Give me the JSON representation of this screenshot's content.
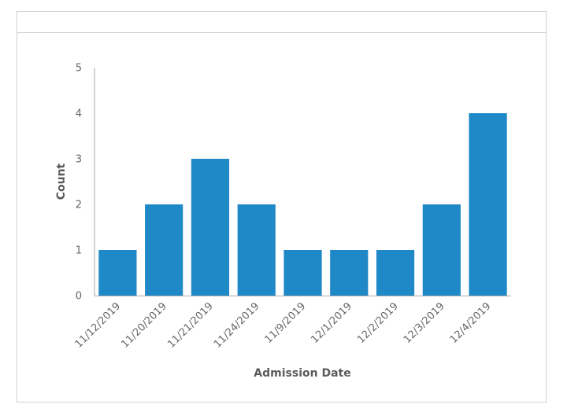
{
  "chart_data": {
    "type": "bar",
    "title": "",
    "xlabel": "Admission Date",
    "ylabel": "Count",
    "categories": [
      "11/12/2019",
      "11/20/2019",
      "11/21/2019",
      "11/24/2019",
      "11/9/2019",
      "12/1/2019",
      "12/2/2019",
      "12/3/2019",
      "12/4/2019"
    ],
    "values": [
      1,
      2,
      3,
      2,
      1,
      1,
      1,
      2,
      4
    ],
    "ylim": [
      0,
      5
    ],
    "yticks": [
      0,
      1,
      2,
      3,
      4,
      5
    ],
    "grid": false,
    "legend": "none",
    "bar_color": "#1f88c7",
    "axis_color": "#aaaaaa"
  }
}
